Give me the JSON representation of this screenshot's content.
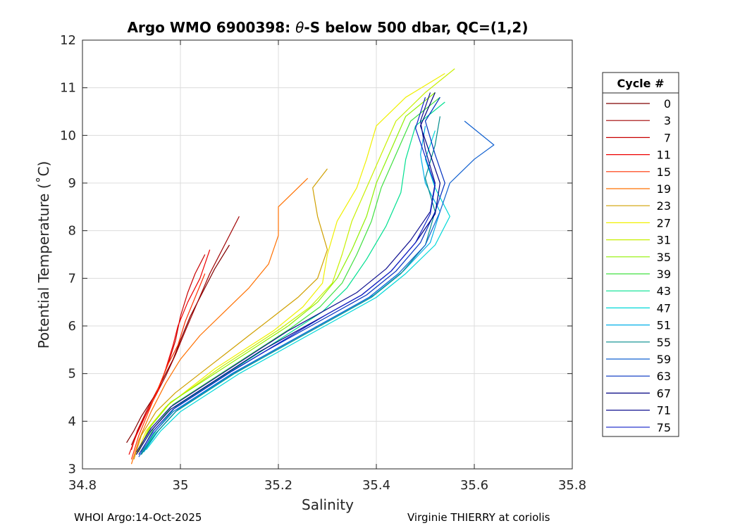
{
  "chart_data": {
    "type": "line",
    "title": "Argo WMO 6900398: θ-S below 500 dbar,  QC=(1,2)",
    "title_parts": [
      "Argo WMO 6900398: ",
      "θ",
      "-S below 500 dbar,  QC=(1,2)"
    ],
    "xlabel": "Salinity",
    "ylabel": "Potential Temperature (˚C)",
    "xlim": [
      34.8,
      35.8
    ],
    "ylim": [
      3,
      12
    ],
    "xticks": [
      34.8,
      35,
      35.2,
      35.4,
      35.6,
      35.8
    ],
    "xtick_labels": [
      "34.8",
      "35",
      "35.2",
      "35.4",
      "35.6",
      "35.8"
    ],
    "yticks": [
      3,
      4,
      5,
      6,
      7,
      8,
      9,
      10,
      11,
      12
    ],
    "ytick_labels": [
      "3",
      "4",
      "5",
      "6",
      "7",
      "8",
      "9",
      "10",
      "11",
      "12"
    ],
    "grid": true,
    "legend_title": "Cycle #",
    "legend_position": "outside-right",
    "series": [
      {
        "name": "0",
        "color": "#800000",
        "points": [
          [
            34.89,
            3.55
          ],
          [
            34.905,
            3.8
          ],
          [
            34.92,
            4.1
          ],
          [
            34.945,
            4.5
          ],
          [
            34.965,
            4.9
          ],
          [
            34.985,
            5.3
          ],
          [
            35.0,
            5.7
          ],
          [
            35.02,
            6.2
          ],
          [
            35.045,
            6.7
          ],
          [
            35.07,
            7.2
          ],
          [
            35.1,
            7.7
          ]
        ]
      },
      {
        "name": "3",
        "color": "#a00000",
        "points": [
          [
            34.9,
            3.5
          ],
          [
            34.915,
            3.85
          ],
          [
            34.93,
            4.15
          ],
          [
            34.95,
            4.55
          ],
          [
            34.97,
            4.95
          ],
          [
            34.99,
            5.4
          ],
          [
            35.01,
            5.9
          ],
          [
            35.035,
            6.5
          ],
          [
            35.06,
            7.1
          ],
          [
            35.09,
            7.7
          ],
          [
            35.12,
            8.3
          ]
        ]
      },
      {
        "name": "7",
        "color": "#c80000",
        "points": [
          [
            34.9,
            3.4
          ],
          [
            34.912,
            3.8
          ],
          [
            34.93,
            4.2
          ],
          [
            34.955,
            4.7
          ],
          [
            34.975,
            5.2
          ],
          [
            34.99,
            5.7
          ],
          [
            35.0,
            6.2
          ],
          [
            35.015,
            6.7
          ],
          [
            35.03,
            7.1
          ],
          [
            35.05,
            7.5
          ]
        ]
      },
      {
        "name": "11",
        "color": "#ee0000",
        "points": [
          [
            34.895,
            3.3
          ],
          [
            34.91,
            3.7
          ],
          [
            34.93,
            4.15
          ],
          [
            34.955,
            4.65
          ],
          [
            34.97,
            5.1
          ],
          [
            34.985,
            5.6
          ],
          [
            34.995,
            6.0
          ],
          [
            35.015,
            6.5
          ],
          [
            35.04,
            7.0
          ],
          [
            35.06,
            7.6
          ]
        ]
      },
      {
        "name": "15",
        "color": "#ff3000",
        "points": [
          [
            34.9,
            3.2
          ],
          [
            34.915,
            3.7
          ],
          [
            34.935,
            4.2
          ],
          [
            34.955,
            4.7
          ],
          [
            34.975,
            5.2
          ],
          [
            34.995,
            5.6
          ],
          [
            35.01,
            6.1
          ],
          [
            35.03,
            6.6
          ],
          [
            35.05,
            7.1
          ]
        ]
      },
      {
        "name": "19",
        "color": "#ff7000",
        "points": [
          [
            34.9,
            3.1
          ],
          [
            34.915,
            3.6
          ],
          [
            34.94,
            4.2
          ],
          [
            34.97,
            4.8
          ],
          [
            35.0,
            5.3
          ],
          [
            35.04,
            5.8
          ],
          [
            35.09,
            6.3
          ],
          [
            35.14,
            6.8
          ],
          [
            35.18,
            7.3
          ],
          [
            35.2,
            7.9
          ],
          [
            35.2,
            8.5
          ],
          [
            35.26,
            9.1
          ]
        ]
      },
      {
        "name": "23",
        "color": "#d0a000",
        "points": [
          [
            34.905,
            3.2
          ],
          [
            34.92,
            3.7
          ],
          [
            34.95,
            4.2
          ],
          [
            34.99,
            4.6
          ],
          [
            35.04,
            5.0
          ],
          [
            35.09,
            5.4
          ],
          [
            35.14,
            5.8
          ],
          [
            35.19,
            6.2
          ],
          [
            35.24,
            6.6
          ],
          [
            35.28,
            7.0
          ],
          [
            35.3,
            7.6
          ],
          [
            35.28,
            8.3
          ],
          [
            35.27,
            8.9
          ],
          [
            35.3,
            9.3
          ]
        ]
      },
      {
        "name": "27",
        "color": "#f0f000",
        "points": [
          [
            34.91,
            3.3
          ],
          [
            34.93,
            3.8
          ],
          [
            34.97,
            4.3
          ],
          [
            35.02,
            4.7
          ],
          [
            35.07,
            5.1
          ],
          [
            35.13,
            5.5
          ],
          [
            35.19,
            5.9
          ],
          [
            35.25,
            6.4
          ],
          [
            35.29,
            6.9
          ],
          [
            35.3,
            7.5
          ],
          [
            35.32,
            8.2
          ],
          [
            35.36,
            8.9
          ],
          [
            35.38,
            9.5
          ],
          [
            35.4,
            10.2
          ],
          [
            35.46,
            10.8
          ],
          [
            35.54,
            11.3
          ]
        ]
      },
      {
        "name": "31",
        "color": "#c8f000",
        "points": [
          [
            34.915,
            3.35
          ],
          [
            34.935,
            3.85
          ],
          [
            34.975,
            4.35
          ],
          [
            35.03,
            4.75
          ],
          [
            35.085,
            5.15
          ],
          [
            35.145,
            5.55
          ],
          [
            35.205,
            5.95
          ],
          [
            35.265,
            6.4
          ],
          [
            35.31,
            6.9
          ],
          [
            35.33,
            7.5
          ],
          [
            35.35,
            8.2
          ],
          [
            35.38,
            8.9
          ],
          [
            35.41,
            9.6
          ],
          [
            35.44,
            10.3
          ],
          [
            35.5,
            10.9
          ],
          [
            35.56,
            11.4
          ]
        ]
      },
      {
        "name": "35",
        "color": "#90f000",
        "points": [
          [
            34.915,
            3.4
          ],
          [
            34.94,
            3.9
          ],
          [
            34.98,
            4.4
          ],
          [
            35.04,
            4.8
          ],
          [
            35.1,
            5.2
          ],
          [
            35.16,
            5.6
          ],
          [
            35.22,
            6.0
          ],
          [
            35.28,
            6.5
          ],
          [
            35.32,
            7.0
          ],
          [
            35.35,
            7.6
          ],
          [
            35.38,
            8.3
          ],
          [
            35.4,
            9.0
          ],
          [
            35.43,
            9.7
          ],
          [
            35.46,
            10.4
          ],
          [
            35.52,
            10.9
          ]
        ]
      },
      {
        "name": "39",
        "color": "#40e040",
        "points": [
          [
            34.92,
            3.35
          ],
          [
            34.945,
            3.85
          ],
          [
            34.985,
            4.35
          ],
          [
            35.045,
            4.75
          ],
          [
            35.105,
            5.15
          ],
          [
            35.165,
            5.55
          ],
          [
            35.225,
            5.95
          ],
          [
            35.285,
            6.4
          ],
          [
            35.33,
            6.9
          ],
          [
            35.36,
            7.5
          ],
          [
            35.39,
            8.2
          ],
          [
            35.41,
            8.9
          ],
          [
            35.44,
            9.6
          ],
          [
            35.47,
            10.3
          ],
          [
            35.53,
            10.8
          ]
        ]
      },
      {
        "name": "43",
        "color": "#00e090",
        "points": [
          [
            34.92,
            3.3
          ],
          [
            34.95,
            3.8
          ],
          [
            34.99,
            4.3
          ],
          [
            35.05,
            4.7
          ],
          [
            35.11,
            5.1
          ],
          [
            35.17,
            5.5
          ],
          [
            35.23,
            5.9
          ],
          [
            35.29,
            6.3
          ],
          [
            35.34,
            6.8
          ],
          [
            35.38,
            7.4
          ],
          [
            35.42,
            8.1
          ],
          [
            35.45,
            8.8
          ],
          [
            35.46,
            9.5
          ],
          [
            35.48,
            10.2
          ],
          [
            35.54,
            10.7
          ]
        ]
      },
      {
        "name": "47",
        "color": "#00d8d8",
        "points": [
          [
            34.93,
            3.4
          ],
          [
            34.96,
            3.8
          ],
          [
            35.0,
            4.2
          ],
          [
            35.06,
            4.6
          ],
          [
            35.12,
            5.0
          ],
          [
            35.19,
            5.4
          ],
          [
            35.26,
            5.8
          ],
          [
            35.33,
            6.2
          ],
          [
            35.4,
            6.6
          ],
          [
            35.46,
            7.1
          ],
          [
            35.52,
            7.7
          ],
          [
            35.55,
            8.3
          ],
          [
            35.52,
            8.9
          ],
          [
            35.5,
            9.5
          ],
          [
            35.52,
            10.1
          ]
        ]
      },
      {
        "name": "51",
        "color": "#00b0e8",
        "points": [
          [
            34.925,
            3.35
          ],
          [
            34.955,
            3.8
          ],
          [
            34.995,
            4.25
          ],
          [
            35.055,
            4.65
          ],
          [
            35.115,
            5.05
          ],
          [
            35.185,
            5.45
          ],
          [
            35.255,
            5.85
          ],
          [
            35.325,
            6.25
          ],
          [
            35.395,
            6.65
          ],
          [
            35.455,
            7.15
          ],
          [
            35.51,
            7.75
          ],
          [
            35.53,
            8.4
          ],
          [
            35.5,
            9.0
          ],
          [
            35.49,
            9.6
          ],
          [
            35.5,
            10.2
          ]
        ]
      },
      {
        "name": "55",
        "color": "#008c8c",
        "points": [
          [
            34.92,
            3.3
          ],
          [
            34.95,
            3.75
          ],
          [
            34.99,
            4.2
          ],
          [
            35.05,
            4.6
          ],
          [
            35.11,
            5.0
          ],
          [
            35.18,
            5.4
          ],
          [
            35.25,
            5.8
          ],
          [
            35.32,
            6.2
          ],
          [
            35.39,
            6.6
          ],
          [
            35.45,
            7.1
          ],
          [
            35.5,
            7.7
          ],
          [
            35.52,
            8.4
          ],
          [
            35.5,
            9.1
          ],
          [
            35.52,
            9.8
          ],
          [
            35.53,
            10.4
          ]
        ]
      },
      {
        "name": "59",
        "color": "#1060d0",
        "points": [
          [
            34.915,
            3.25
          ],
          [
            34.945,
            3.75
          ],
          [
            34.985,
            4.2
          ],
          [
            35.045,
            4.6
          ],
          [
            35.105,
            5.0
          ],
          [
            35.175,
            5.4
          ],
          [
            35.245,
            5.8
          ],
          [
            35.315,
            6.2
          ],
          [
            35.385,
            6.6
          ],
          [
            35.445,
            7.1
          ],
          [
            35.5,
            7.7
          ],
          [
            35.53,
            8.4
          ],
          [
            35.55,
            9.0
          ],
          [
            35.6,
            9.5
          ],
          [
            35.64,
            9.8
          ],
          [
            35.58,
            10.3
          ]
        ]
      },
      {
        "name": "63",
        "color": "#0030c0",
        "points": [
          [
            34.915,
            3.3
          ],
          [
            34.945,
            3.8
          ],
          [
            34.985,
            4.25
          ],
          [
            35.045,
            4.65
          ],
          [
            35.105,
            5.05
          ],
          [
            35.17,
            5.45
          ],
          [
            35.24,
            5.85
          ],
          [
            35.31,
            6.25
          ],
          [
            35.38,
            6.65
          ],
          [
            35.44,
            7.15
          ],
          [
            35.49,
            7.75
          ],
          [
            35.52,
            8.4
          ],
          [
            35.54,
            9.0
          ],
          [
            35.52,
            9.6
          ],
          [
            35.5,
            10.3
          ],
          [
            35.53,
            10.8
          ]
        ]
      },
      {
        "name": "67",
        "color": "#000080",
        "points": [
          [
            34.91,
            3.3
          ],
          [
            34.94,
            3.8
          ],
          [
            34.98,
            4.25
          ],
          [
            35.04,
            4.65
          ],
          [
            35.1,
            5.05
          ],
          [
            35.16,
            5.45
          ],
          [
            35.23,
            5.85
          ],
          [
            35.3,
            6.25
          ],
          [
            35.37,
            6.65
          ],
          [
            35.43,
            7.15
          ],
          [
            35.48,
            7.75
          ],
          [
            35.52,
            8.35
          ],
          [
            35.53,
            9.0
          ],
          [
            35.51,
            9.6
          ],
          [
            35.49,
            10.2
          ],
          [
            35.52,
            10.9
          ]
        ]
      },
      {
        "name": "71",
        "color": "#101090",
        "points": [
          [
            34.91,
            3.35
          ],
          [
            34.94,
            3.85
          ],
          [
            34.98,
            4.3
          ],
          [
            35.04,
            4.7
          ],
          [
            35.1,
            5.1
          ],
          [
            35.16,
            5.5
          ],
          [
            35.22,
            5.9
          ],
          [
            35.29,
            6.3
          ],
          [
            35.36,
            6.7
          ],
          [
            35.42,
            7.2
          ],
          [
            35.47,
            7.8
          ],
          [
            35.51,
            8.4
          ],
          [
            35.52,
            9.0
          ],
          [
            35.5,
            9.7
          ],
          [
            35.49,
            10.3
          ],
          [
            35.51,
            10.9
          ]
        ]
      },
      {
        "name": "75",
        "color": "#1020c8",
        "points": [
          [
            34.915,
            3.3
          ],
          [
            34.945,
            3.8
          ],
          [
            34.985,
            4.25
          ],
          [
            35.045,
            4.65
          ],
          [
            35.105,
            5.05
          ],
          [
            35.17,
            5.45
          ],
          [
            35.235,
            5.85
          ],
          [
            35.3,
            6.25
          ],
          [
            35.37,
            6.65
          ],
          [
            35.43,
            7.15
          ],
          [
            35.48,
            7.75
          ],
          [
            35.51,
            8.35
          ],
          [
            35.52,
            8.95
          ],
          [
            35.5,
            9.55
          ],
          [
            35.48,
            10.15
          ],
          [
            35.5,
            10.8
          ]
        ]
      }
    ]
  },
  "footer": {
    "left": "WHOI Argo:14-Oct-2025",
    "right": "Virginie THIERRY at coriolis"
  }
}
